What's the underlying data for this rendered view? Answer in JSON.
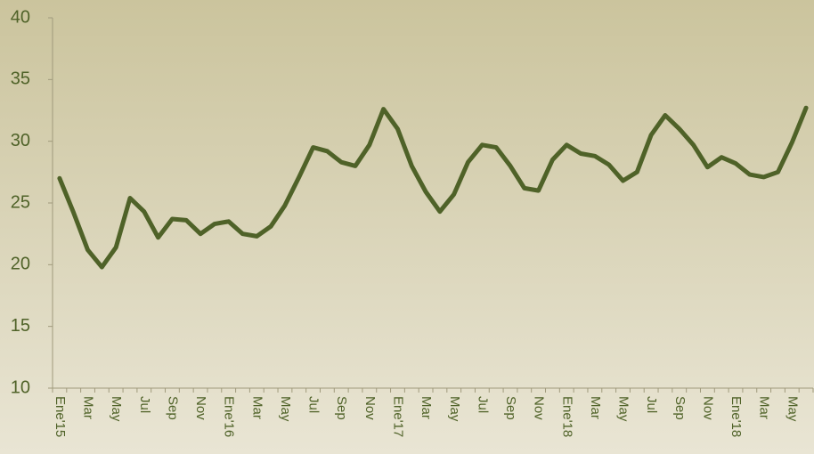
{
  "chart_data": {
    "type": "line",
    "categories": [
      "Ene'15",
      null,
      "Mar",
      null,
      "May",
      null,
      "Jul",
      null,
      "Sep",
      null,
      "Nov",
      null,
      "Ene'16",
      null,
      "Mar",
      null,
      "May",
      null,
      "Jul",
      null,
      "Sep",
      null,
      "Nov",
      null,
      "Ene'17",
      null,
      "Mar",
      null,
      "May",
      null,
      "Jul",
      null,
      "Sep",
      null,
      "Nov",
      null,
      "Ene'18",
      null,
      "Mar",
      null,
      "May",
      null,
      "Jul",
      null,
      "Sep",
      null,
      "Nov",
      null,
      "Ene'18",
      null,
      "Mar",
      null,
      "May",
      null
    ],
    "series": [
      {
        "color": "#4f6228",
        "values": [
          27.0,
          24.2,
          21.2,
          19.8,
          21.4,
          25.4,
          24.3,
          22.2,
          23.7,
          23.6,
          22.5,
          23.3,
          23.5,
          22.5,
          22.3,
          23.1,
          24.8,
          27.1,
          29.5,
          29.2,
          28.3,
          28.0,
          29.7,
          32.6,
          31.0,
          28.0,
          25.9,
          24.3,
          25.7,
          28.3,
          29.7,
          29.5,
          28.0,
          26.2,
          26.0,
          28.5,
          29.7,
          29.0,
          28.8,
          28.1,
          26.8,
          27.5,
          30.5,
          32.1,
          31.0,
          29.7,
          27.9,
          28.7,
          28.2,
          27.3,
          27.1,
          27.5,
          29.9,
          32.7
        ]
      }
    ],
    "ylim": [
      10,
      40
    ],
    "yticks": [
      10,
      15,
      20,
      25,
      30,
      35,
      40
    ]
  }
}
